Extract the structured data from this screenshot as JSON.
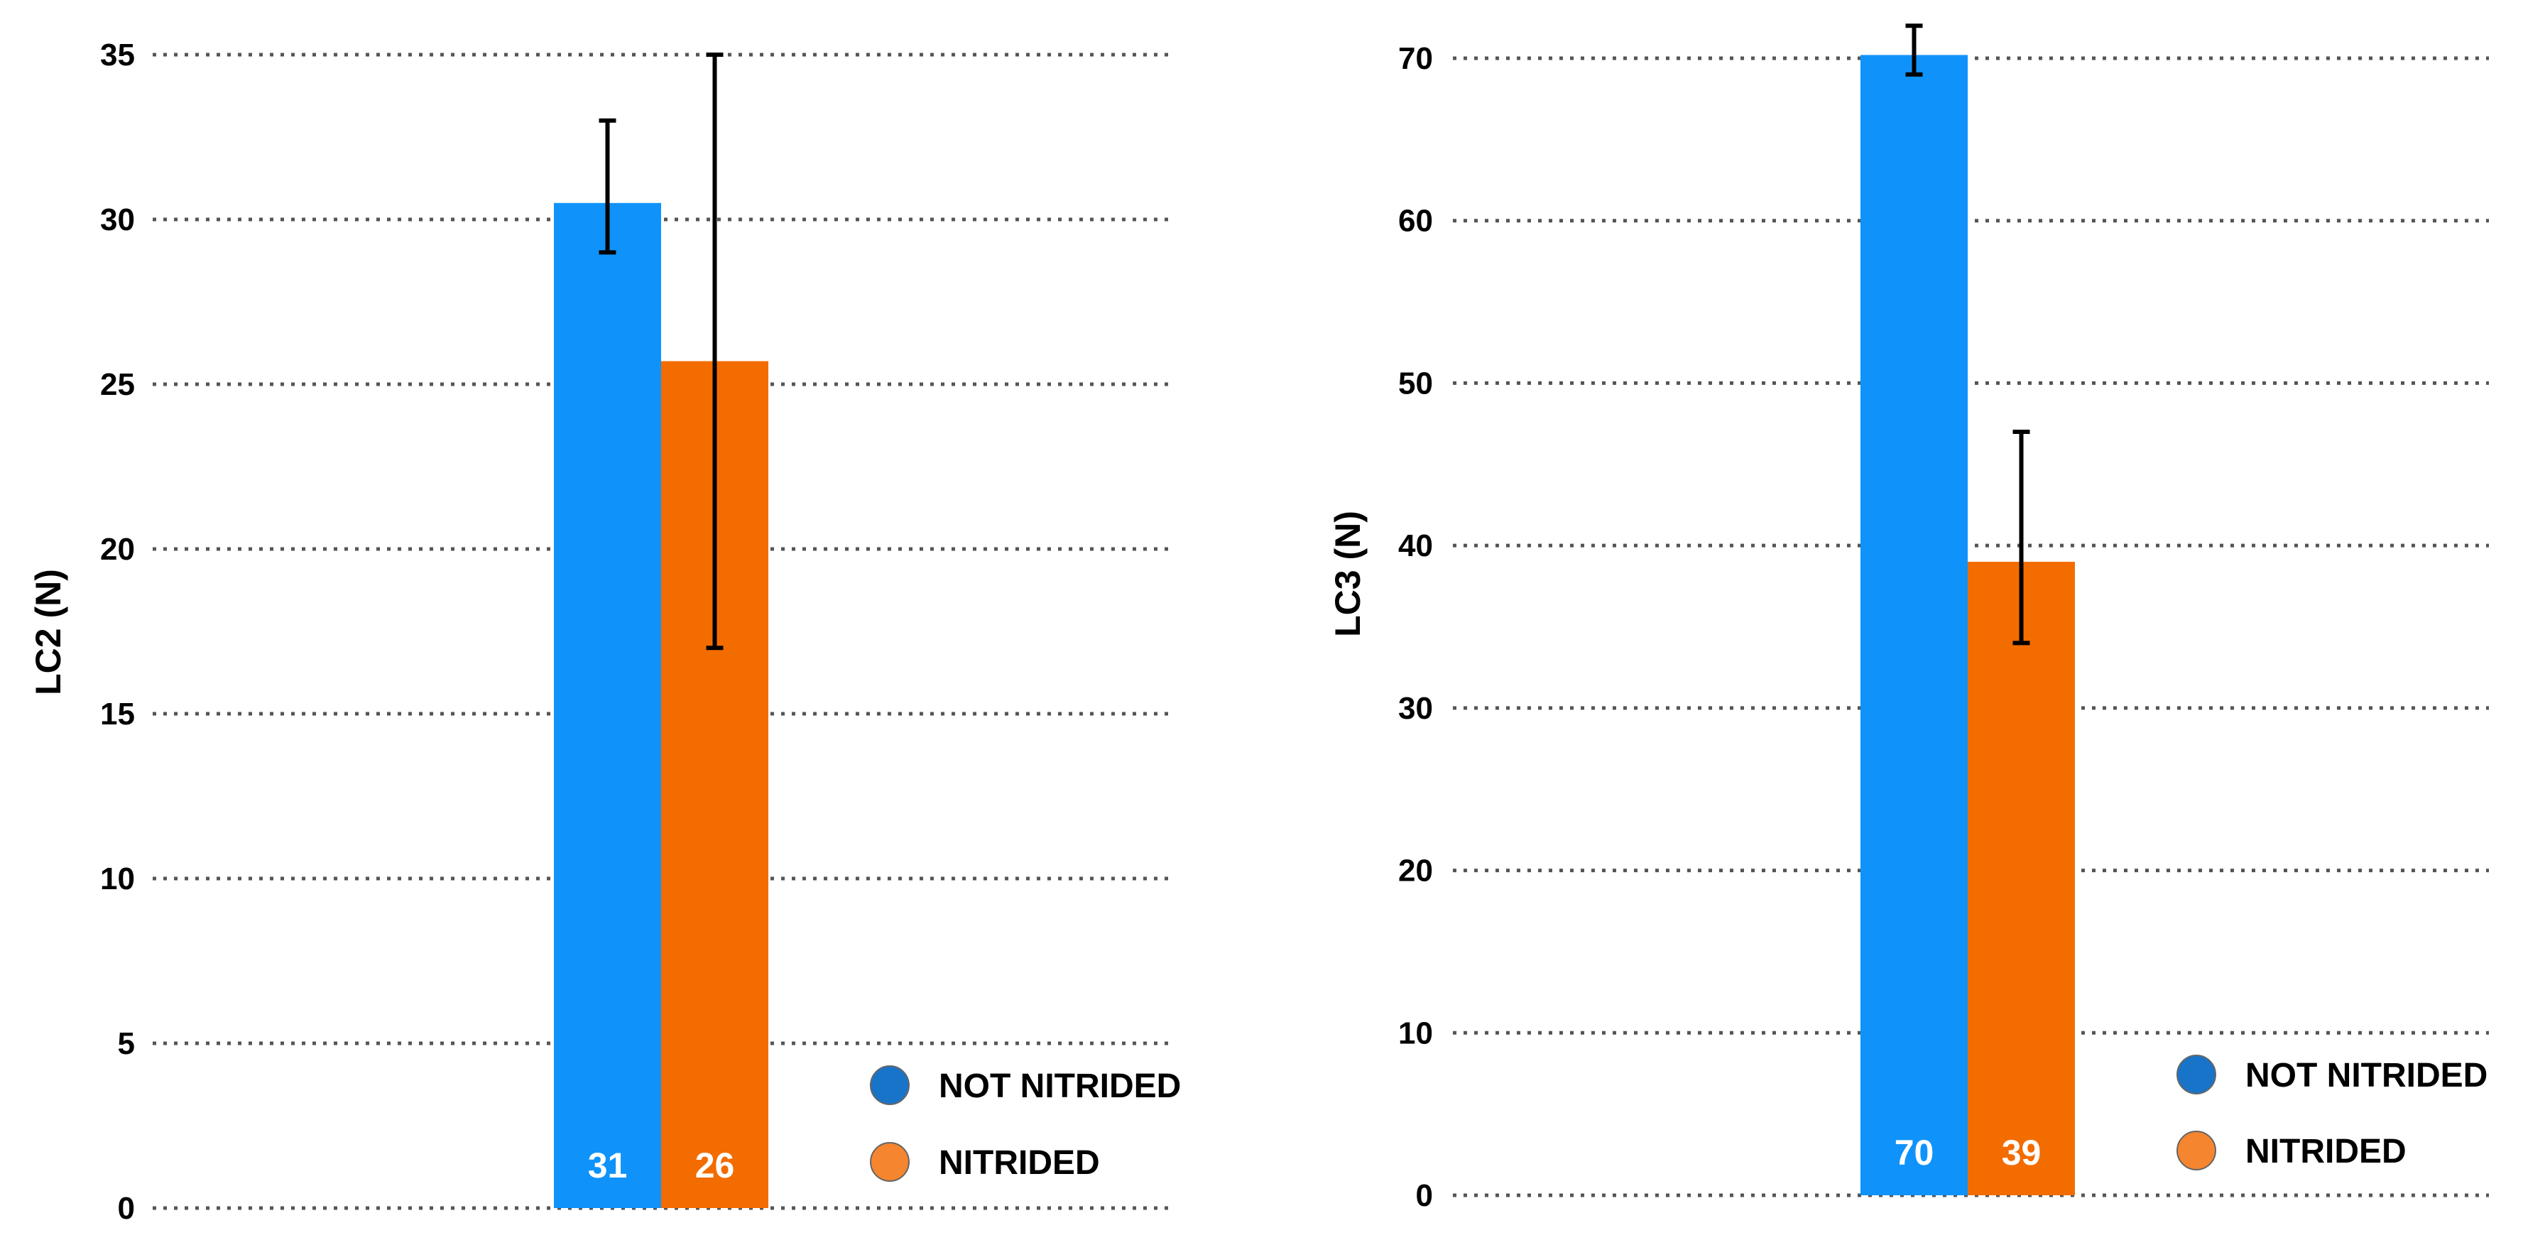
{
  "chart_data": [
    {
      "type": "bar",
      "ylabel": "LC2 (N)",
      "ylim": [
        0,
        35
      ],
      "yticks": [
        0,
        5,
        10,
        15,
        20,
        25,
        30,
        35
      ],
      "grid": true,
      "legend_position": "bottom-right",
      "series": [
        {
          "name": "NOT NITRIDED",
          "value": 30.5,
          "label": "31",
          "error": [
            29,
            33
          ],
          "color": "#0f93fa",
          "legend_color": "#1874c9"
        },
        {
          "name": "NITRIDED",
          "value": 25.7,
          "label": "26",
          "error": [
            17,
            35
          ],
          "color": "#f36c00",
          "legend_color": "#f5852e"
        }
      ]
    },
    {
      "type": "bar",
      "ylabel": "LC3 (N)",
      "ylim": [
        0,
        70
      ],
      "yticks": [
        0,
        10,
        20,
        30,
        40,
        50,
        60,
        70
      ],
      "grid": true,
      "legend_position": "bottom-right",
      "series": [
        {
          "name": "NOT NITRIDED",
          "value": 70.2,
          "label": "70",
          "error": [
            69,
            72
          ],
          "color": "#0f93fa",
          "legend_color": "#1874c9"
        },
        {
          "name": "NITRIDED",
          "value": 39,
          "label": "39",
          "error": [
            34,
            47
          ],
          "color": "#f36c00",
          "legend_color": "#f5852e"
        }
      ]
    }
  ]
}
